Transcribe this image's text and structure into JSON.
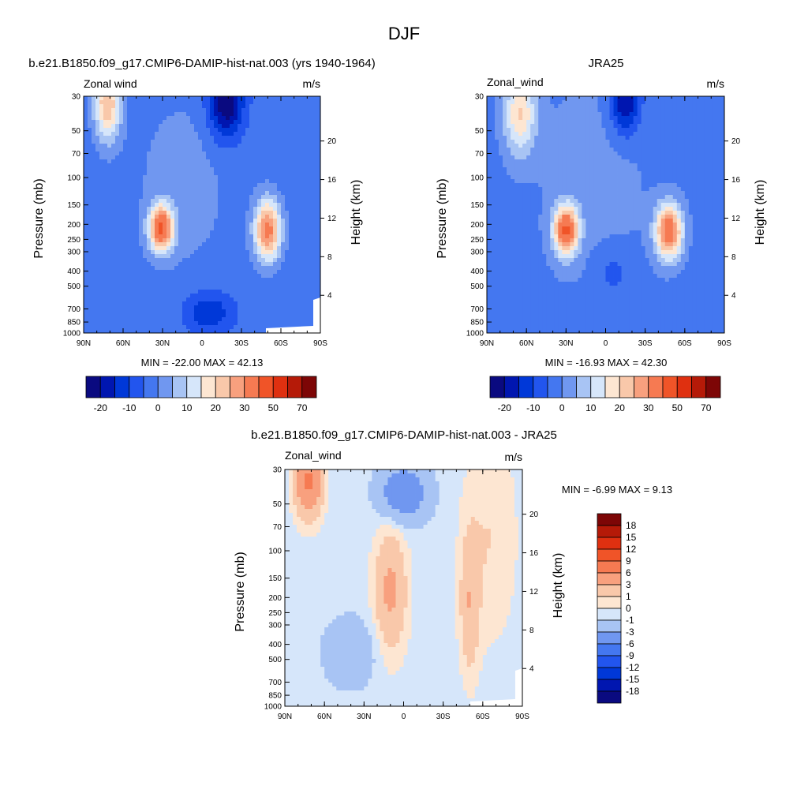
{
  "page": {
    "main_title": "DJF"
  },
  "colors": {
    "wind_scale": [
      "#0a0a80",
      "#0016b0",
      "#0038d8",
      "#2255ee",
      "#4477f0",
      "#7097f0",
      "#a8c4f4",
      "#d6e6fa",
      "#fde6d2",
      "#f9c8aa",
      "#f8a07e",
      "#f67a52",
      "#f05428",
      "#df3010",
      "#b51a08",
      "#7d0606"
    ],
    "diff_scale": [
      "#0a0a80",
      "#0016b0",
      "#0038d8",
      "#2255ee",
      "#4477f0",
      "#7097f0",
      "#a8c4f4",
      "#d6e6fa",
      "#fde6d2",
      "#f9c8aa",
      "#f8a07e",
      "#f67a52",
      "#f05428",
      "#df3010",
      "#b51a08",
      "#7d0606"
    ],
    "missing": "#ffffff"
  },
  "chart_data": [
    {
      "id": "model",
      "type": "heatmap",
      "title": "b.e21.B1850.f09_g17.CMIP6-DAMIP-hist-nat.003 (yrs 1940-1964)",
      "left_label": "Zonal wind",
      "right_label": "m/s",
      "ylabel": "Pressure (mb)",
      "ylabel_right": "Height (km)",
      "x_ticks": [
        "90N",
        "60N",
        "30N",
        "0",
        "30S",
        "60S",
        "90S"
      ],
      "x_values": [
        90,
        60,
        30,
        0,
        -30,
        -60,
        -90
      ],
      "y_ticks": [
        "30",
        "50",
        "70",
        "100",
        "150",
        "200",
        "250",
        "300",
        "400",
        "500",
        "700",
        "850",
        "1000"
      ],
      "y_values": [
        30,
        50,
        70,
        100,
        150,
        200,
        250,
        300,
        400,
        500,
        700,
        850,
        1000
      ],
      "height_ticks": [
        "4",
        "8",
        "12",
        "16",
        "20"
      ],
      "height_values": [
        4,
        8,
        12,
        16,
        20
      ],
      "min_max": "MIN = -22.00  MAX =  42.13",
      "min": -22.0,
      "max": 42.13,
      "jets": [
        {
          "lat": 30,
          "p": 190,
          "value": 42.13
        },
        {
          "lat": 70,
          "p": 32,
          "value": 28
        },
        {
          "lat": -50,
          "p": 220,
          "value": 36
        },
        {
          "lat": -18,
          "p": 32,
          "value": -22
        },
        {
          "lat": -10,
          "p": 900,
          "value": -12
        }
      ],
      "colorbar_labels": [
        "-20",
        "-10",
        "0",
        "10",
        "20",
        "30",
        "50",
        "70"
      ]
    },
    {
      "id": "obs",
      "type": "heatmap",
      "title": "JRA25",
      "left_label": "Zonal_wind",
      "right_label": "m/s",
      "ylabel": "Pressure (mb)",
      "ylabel_right": "Height (km)",
      "x_ticks": [
        "90N",
        "60N",
        "30N",
        "0",
        "30S",
        "60S",
        "90S"
      ],
      "x_values": [
        90,
        60,
        30,
        0,
        -30,
        -60,
        -90
      ],
      "y_ticks": [
        "30",
        "50",
        "70",
        "100",
        "150",
        "200",
        "250",
        "300",
        "400",
        "500",
        "700",
        "850",
        "1000"
      ],
      "y_values": [
        30,
        50,
        70,
        100,
        150,
        200,
        250,
        300,
        400,
        500,
        700,
        850,
        1000
      ],
      "height_ticks": [
        "4",
        "8",
        "12",
        "16",
        "20"
      ],
      "height_values": [
        4,
        8,
        12,
        16,
        20
      ],
      "min_max": "MIN = -16.93  MAX =  42.30",
      "min": -16.93,
      "max": 42.3,
      "jets": [
        {
          "lat": 30,
          "p": 190,
          "value": 42.3
        },
        {
          "lat": 65,
          "p": 40,
          "value": 22
        },
        {
          "lat": -48,
          "p": 230,
          "value": 38
        },
        {
          "lat": -15,
          "p": 35,
          "value": -16.93
        },
        {
          "lat": -5,
          "p": 280,
          "value": -5
        }
      ],
      "colorbar_labels": [
        "-20",
        "-10",
        "0",
        "10",
        "20",
        "30",
        "50",
        "70"
      ]
    },
    {
      "id": "diff",
      "type": "heatmap",
      "title": "b.e21.B1850.f09_g17.CMIP6-DAMIP-hist-nat.003 - JRA25",
      "left_label": "Zonal_wind",
      "right_label": "m/s",
      "ylabel": "Pressure (mb)",
      "ylabel_right": "Height (km)",
      "x_ticks": [
        "90N",
        "60N",
        "30N",
        "0",
        "30S",
        "60S",
        "90S"
      ],
      "x_values": [
        90,
        60,
        30,
        0,
        -30,
        -60,
        -90
      ],
      "y_ticks": [
        "30",
        "50",
        "70",
        "100",
        "150",
        "200",
        "250",
        "300",
        "400",
        "500",
        "700",
        "850",
        "1000"
      ],
      "y_values": [
        30,
        50,
        70,
        100,
        150,
        200,
        250,
        300,
        400,
        500,
        700,
        850,
        1000
      ],
      "height_ticks": [
        "4",
        "8",
        "12",
        "16",
        "20"
      ],
      "height_values": [
        4,
        8,
        12,
        16,
        20
      ],
      "min_max": "MIN =  -6.99  MAX =   9.13",
      "min": -6.99,
      "max": 9.13,
      "colorbar_labels": [
        "18",
        "15",
        "12",
        "9",
        "6",
        "3",
        "1",
        "0",
        "-1",
        "-3",
        "-6",
        "-9",
        "-12",
        "-15",
        "-18"
      ]
    }
  ]
}
